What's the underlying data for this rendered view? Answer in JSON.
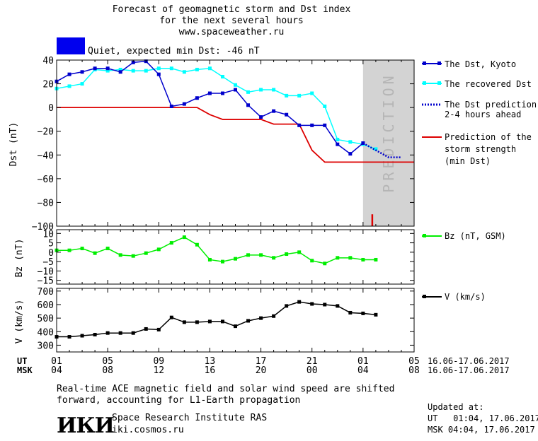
{
  "header": {
    "title_line1": "Forecast of geomagnetic storm and Dst index",
    "title_line2": "for the next several hours",
    "url": "www.spaceweather.ru",
    "status_text": "Quiet, expected min Dst: -46 nT",
    "status_color": "#0000ee"
  },
  "colors": {
    "dst_kyoto": "#0000cc",
    "dst_recovered": "#00ffff",
    "dst_prediction": "#0000cc",
    "storm_strength": "#dd0000",
    "bz": "#00ee00",
    "v": "#000000",
    "prediction_band": "#d3d3d3"
  },
  "prediction_band_label": "PREDICTION",
  "time_axis": {
    "ut_label": "UT",
    "msk_label": "MSK",
    "ut_ticks": [
      "01",
      "05",
      "09",
      "13",
      "17",
      "21",
      "01",
      "05"
    ],
    "msk_ticks": [
      "04",
      "08",
      "12",
      "16",
      "20",
      "00",
      "04",
      "08"
    ],
    "date_range_ut": "16.06-17.06.2017",
    "date_range_msk": "16.06-17.06.2017"
  },
  "chart_data": [
    {
      "type": "line",
      "id": "dst",
      "ylabel": "Dst (nT)",
      "xlim": [
        1,
        29
      ],
      "ylim": [
        -100,
        40
      ],
      "yticks": [
        40,
        20,
        0,
        -20,
        -40,
        -60,
        -80,
        -100
      ],
      "prediction_start_x": 25,
      "series": [
        {
          "name": "The Dst, Kyoto",
          "x": [
            1,
            2,
            3,
            4,
            5,
            6,
            7,
            8,
            9,
            10,
            11,
            12,
            13,
            14,
            15,
            16,
            17,
            18,
            19,
            20,
            21,
            22,
            23,
            24,
            25
          ],
          "values": [
            22,
            28,
            30,
            33,
            33,
            30,
            38,
            39,
            28,
            1,
            3,
            8,
            12,
            12,
            15,
            2,
            -8,
            -3,
            -6,
            -15,
            -15,
            -15,
            -31,
            -39,
            -30
          ]
        },
        {
          "name": "The recovered Dst",
          "x": [
            1,
            2,
            3,
            4,
            5,
            6,
            7,
            8,
            9,
            10,
            11,
            12,
            13,
            14,
            15,
            16,
            17,
            18,
            19,
            20,
            21,
            22,
            23,
            24,
            25,
            26
          ],
          "values": [
            16,
            18,
            20,
            32,
            31,
            32,
            31,
            31,
            33,
            33,
            30,
            32,
            33,
            26,
            19,
            13,
            15,
            15,
            10,
            10,
            12,
            1,
            -27,
            -29,
            -31,
            -35
          ]
        },
        {
          "name": "The Dst prediction 2-4 hours ahead",
          "x": [
            25,
            26,
            27,
            28
          ],
          "values": [
            -30,
            -36,
            -42,
            -42
          ]
        },
        {
          "name": "Prediction of the storm strength (min Dst)",
          "x": [
            1,
            2,
            3,
            4,
            5,
            6,
            7,
            8,
            9,
            10,
            11,
            12,
            13,
            14,
            15,
            16,
            17,
            18,
            19,
            20,
            21,
            22,
            23,
            24,
            25,
            26,
            27,
            28,
            29
          ],
          "values": [
            0,
            0,
            0,
            0,
            0,
            0,
            0,
            0,
            0,
            0,
            0,
            0,
            -6,
            -10,
            -10,
            -10,
            -10,
            -14,
            -14,
            -14,
            -36,
            -46,
            -46,
            -46,
            -46,
            -46,
            -46,
            -46,
            -46
          ]
        }
      ],
      "markers": [
        {
          "x": 26,
          "values_from": -100,
          "values_to": -90
        }
      ]
    },
    {
      "type": "line",
      "id": "bz",
      "ylabel": "Bz (nT)",
      "xlim": [
        1,
        29
      ],
      "ylim": [
        -17,
        12
      ],
      "yticks": [
        10,
        5,
        0,
        -5,
        -10,
        -15
      ],
      "series": [
        {
          "name": "Bz (nT, GSM)",
          "x": [
            1,
            2,
            3,
            4,
            5,
            6,
            7,
            8,
            9,
            10,
            11,
            12,
            13,
            14,
            15,
            16,
            17,
            18,
            19,
            20,
            21,
            22,
            23,
            24,
            25,
            26
          ],
          "values": [
            1,
            1,
            2,
            -0.5,
            2,
            -1.5,
            -2,
            -0.5,
            1.5,
            5,
            8,
            4,
            -4,
            -5,
            -3.5,
            -1.5,
            -1.5,
            -3,
            -1,
            0,
            -4.5,
            -6,
            -3,
            -3,
            -4,
            -4
          ]
        }
      ]
    },
    {
      "type": "line",
      "id": "v",
      "ylabel": "V (km/s)",
      "xlim": [
        1,
        29
      ],
      "ylim": [
        250,
        720
      ],
      "yticks": [
        700,
        600,
        500,
        400,
        300
      ],
      "series": [
        {
          "name": "V (km/s)",
          "x": [
            1,
            2,
            3,
            4,
            5,
            6,
            7,
            8,
            9,
            10,
            11,
            12,
            13,
            14,
            15,
            16,
            17,
            18,
            19,
            20,
            21,
            22,
            23,
            24,
            25,
            26
          ],
          "values": [
            362,
            362,
            370,
            378,
            390,
            390,
            390,
            420,
            415,
            505,
            470,
            470,
            475,
            475,
            440,
            480,
            500,
            515,
            590,
            620,
            605,
            600,
            590,
            540,
            535,
            525
          ]
        }
      ]
    }
  ],
  "footer": {
    "note_line1": "Real-time ACE magnetic field and solar wind speed are shifted",
    "note_line2": "forward, accounting for L1-Earth propagation",
    "logo_text": "ИКИ",
    "institute": "Space Research Institute RAS",
    "institute_url": "iki.cosmos.ru",
    "updated_label": "Updated at:",
    "updated_ut": "UT   01:04, 17.06.2017",
    "updated_msk": "MSK 04:04, 17.06.2017"
  }
}
